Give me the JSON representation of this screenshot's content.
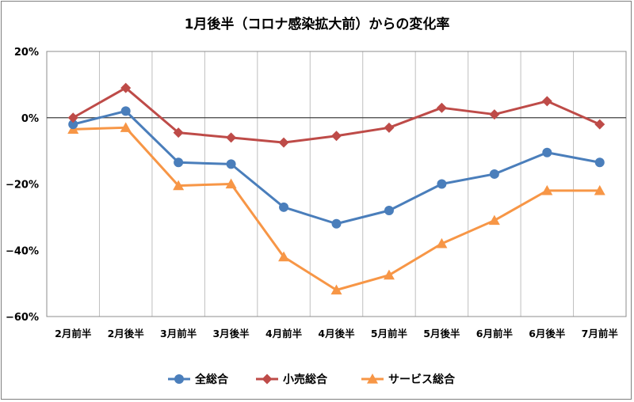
{
  "chart_data": {
    "type": "line",
    "title": "1月後半（コロナ感染拡大前）からの変化率",
    "xlabel": "",
    "ylabel": "",
    "categories": [
      "2月前半",
      "2月後半",
      "3月前半",
      "3月後半",
      "4月前半",
      "4月後半",
      "5月前半",
      "5月後半",
      "6月前半",
      "6月後半",
      "7月前半"
    ],
    "ylim": [
      -60,
      20
    ],
    "yticks": [
      20,
      0,
      -20,
      -40,
      -60
    ],
    "ytick_labels": [
      "20%",
      "0%",
      "−20%",
      "−40%",
      "−60%"
    ],
    "grid": "vertical",
    "legend_position": "bottom",
    "series": [
      {
        "name": "全総合",
        "color": "#4a7ebb",
        "marker": "circle",
        "values": [
          -2.0,
          2.0,
          -13.5,
          -14.0,
          -27.0,
          -32.0,
          -28.0,
          -20.0,
          -17.0,
          -10.5,
          -13.5
        ]
      },
      {
        "name": "小売総合",
        "color": "#be4b48",
        "marker": "diamond",
        "values": [
          0.0,
          9.0,
          -4.5,
          -6.0,
          -7.5,
          -5.5,
          -3.0,
          3.0,
          1.0,
          5.0,
          -2.0
        ]
      },
      {
        "name": "サービス総合",
        "color": "#f79646",
        "marker": "triangle",
        "values": [
          -3.5,
          -3.0,
          -20.5,
          -20.0,
          -42.0,
          -52.0,
          -47.5,
          -38.0,
          -31.0,
          -22.0,
          -22.0
        ]
      }
    ]
  }
}
